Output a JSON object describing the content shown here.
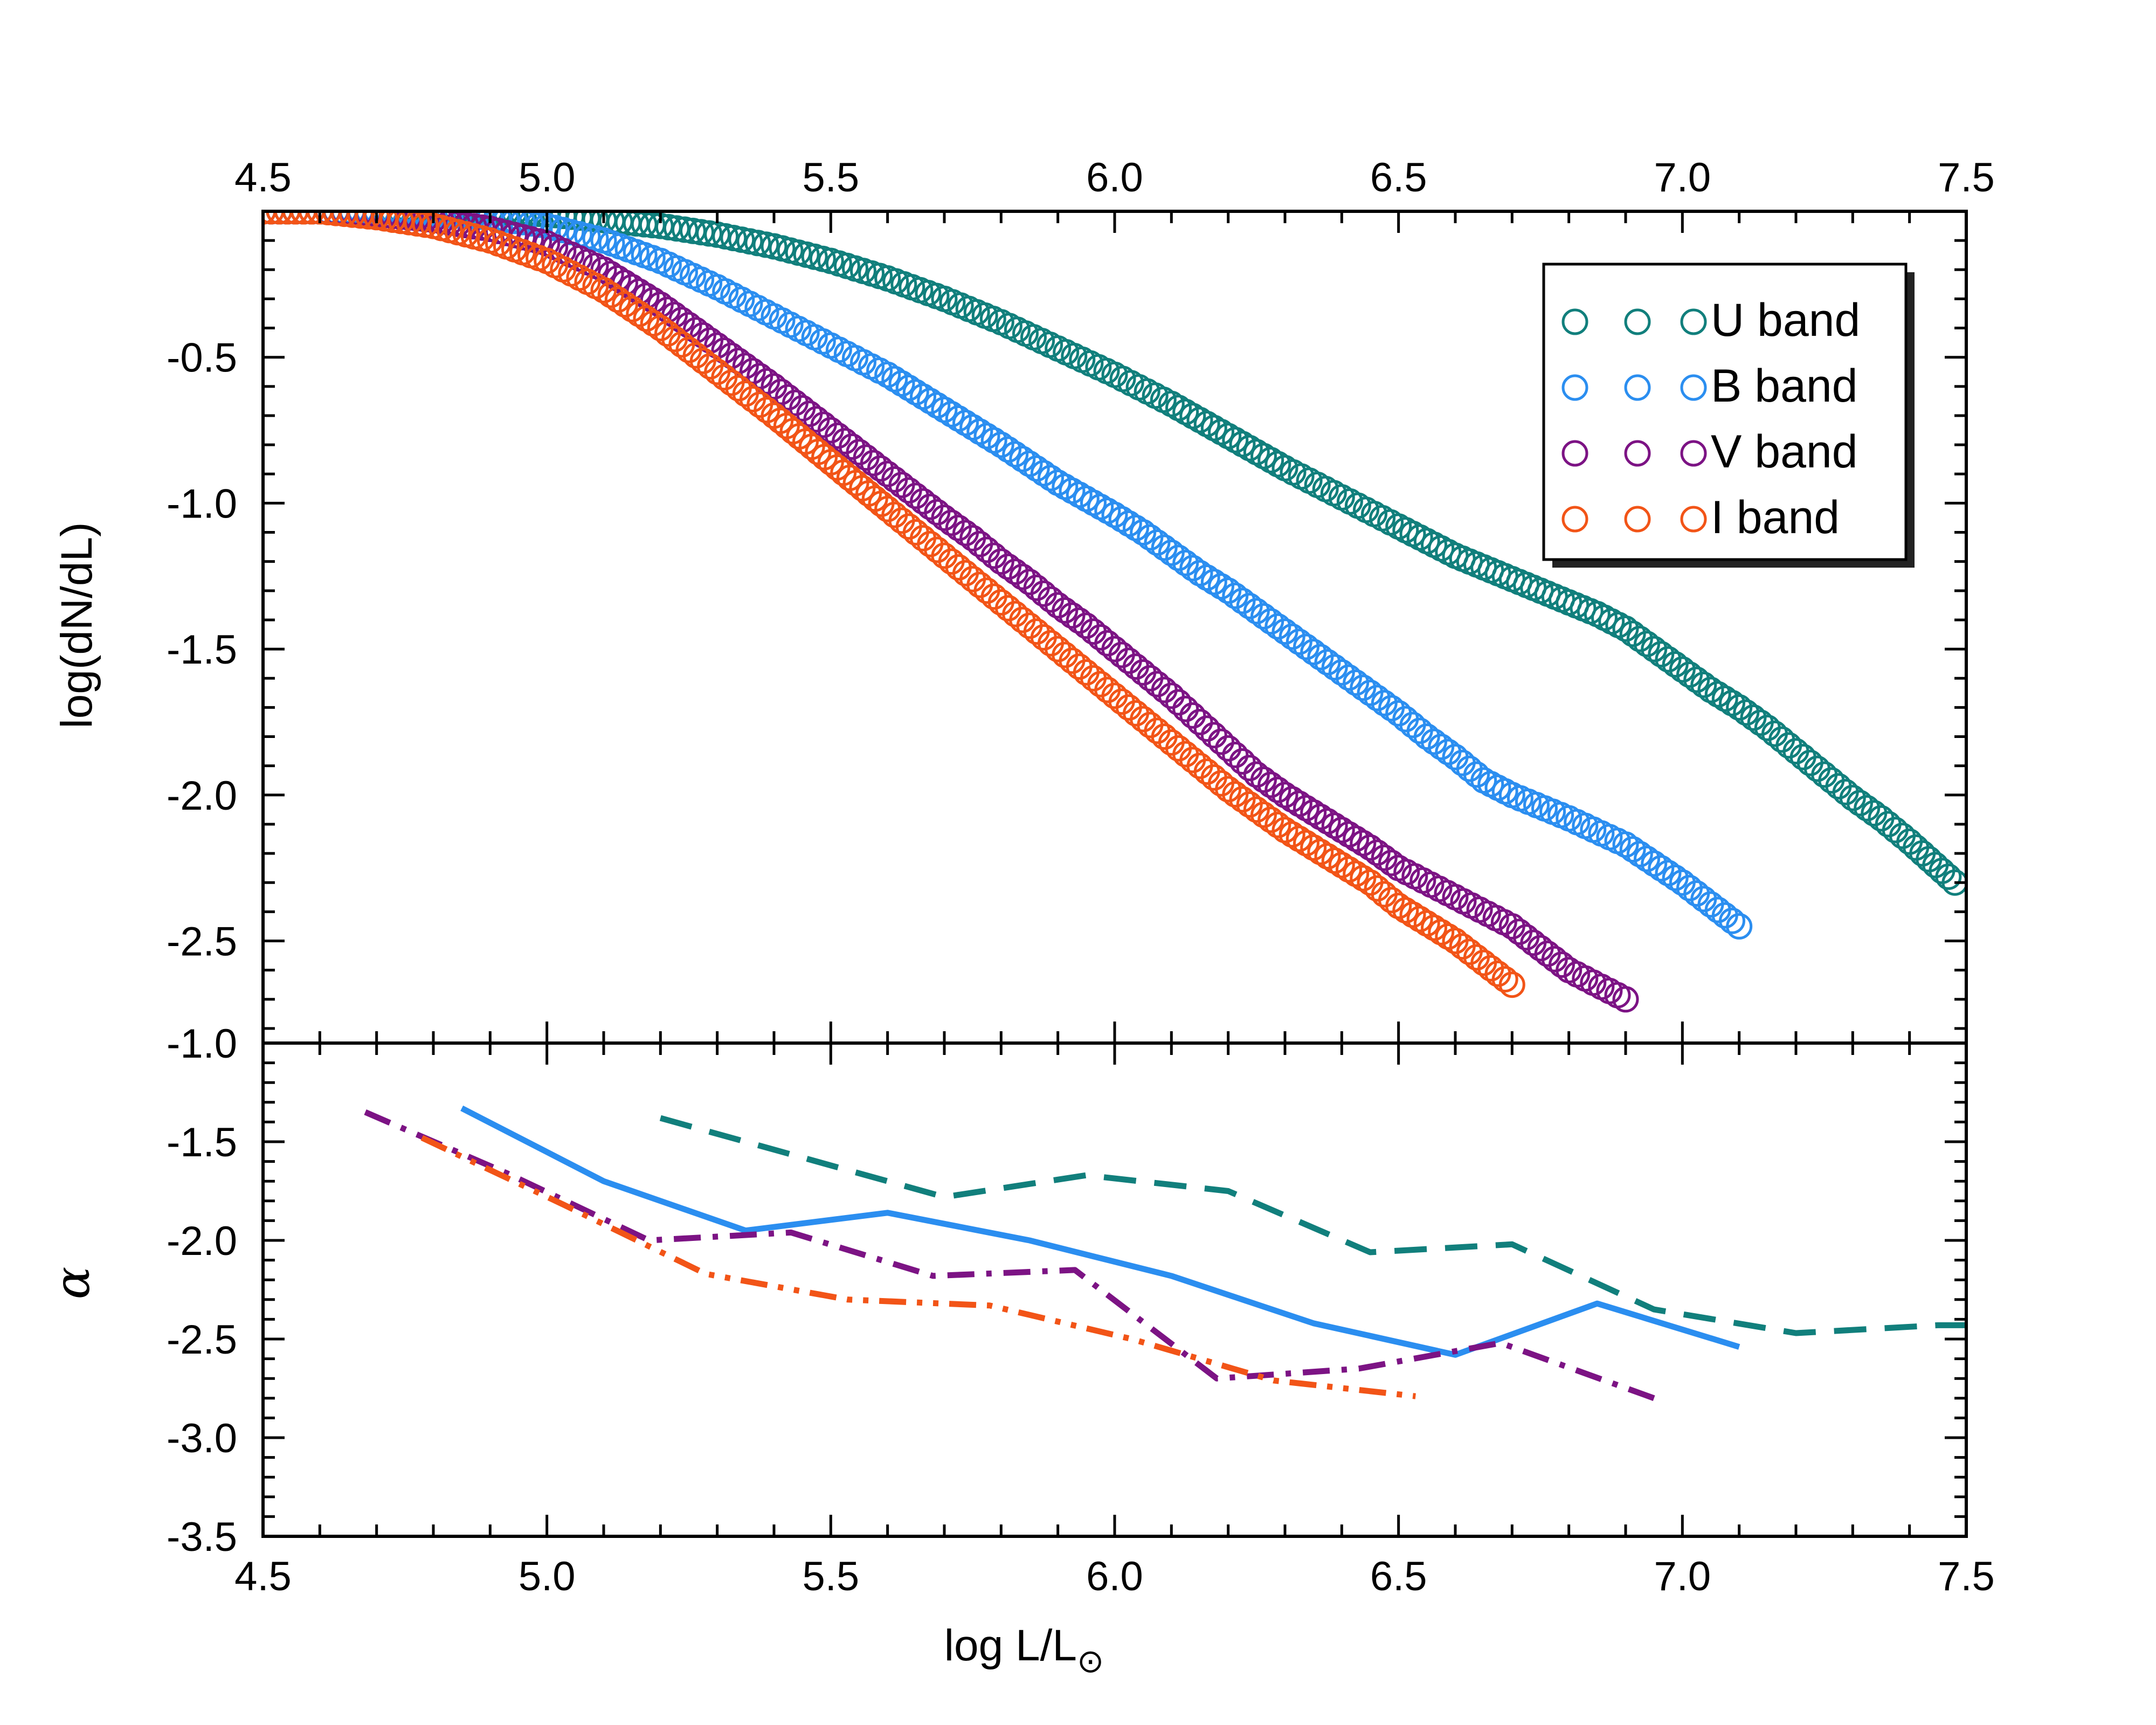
{
  "chart_data": [
    {
      "type": "scatter",
      "panel": "top",
      "xlim": [
        4.5,
        7.5
      ],
      "ylim": [
        -2.85,
        0.0
      ],
      "top_axis_ticks": [
        "4.5",
        "5.0",
        "5.5",
        "6.0",
        "6.5",
        "7.0",
        "7.5"
      ],
      "y_ticks": [
        "-0.5",
        "-1.0",
        "-1.5",
        "-2.0",
        "-2.5"
      ],
      "ylabel": "log(dN/dL)",
      "legend_position": "top-right",
      "series": [
        {
          "name": "U band",
          "color": "#117f7c",
          "legend_label": "U band",
          "x": [
            4.5,
            4.6,
            4.7,
            4.8,
            4.9,
            5.0,
            5.1,
            5.2,
            5.3,
            5.4,
            5.5,
            5.6,
            5.7,
            5.8,
            5.9,
            6.0,
            6.1,
            6.2,
            6.3,
            6.4,
            6.5,
            6.55,
            6.6,
            6.65,
            6.7,
            6.75,
            6.8,
            6.85,
            6.9,
            6.95,
            7.0,
            7.05,
            7.1,
            7.15,
            7.2,
            7.25,
            7.3,
            7.35,
            7.4,
            7.48
          ],
          "y": [
            0.0,
            0.0,
            0.0,
            0.0,
            0.0,
            -0.01,
            -0.03,
            -0.05,
            -0.08,
            -0.12,
            -0.17,
            -0.23,
            -0.3,
            -0.38,
            -0.47,
            -0.56,
            -0.66,
            -0.77,
            -0.88,
            -0.98,
            -1.08,
            -1.13,
            -1.18,
            -1.22,
            -1.26,
            -1.3,
            -1.34,
            -1.38,
            -1.43,
            -1.5,
            -1.57,
            -1.64,
            -1.7,
            -1.77,
            -1.85,
            -1.93,
            -2.01,
            -2.08,
            -2.16,
            -2.3
          ]
        },
        {
          "name": "B band",
          "color": "#2b8ef0",
          "legend_label": "B band",
          "x": [
            4.5,
            4.6,
            4.7,
            4.8,
            4.9,
            5.0,
            5.1,
            5.2,
            5.3,
            5.4,
            5.5,
            5.6,
            5.7,
            5.8,
            5.9,
            6.0,
            6.05,
            6.1,
            6.15,
            6.2,
            6.25,
            6.3,
            6.35,
            6.4,
            6.45,
            6.5,
            6.55,
            6.6,
            6.65,
            6.7,
            6.8,
            6.9,
            7.0,
            7.1
          ],
          "y": [
            0.0,
            0.0,
            0.0,
            -0.01,
            -0.02,
            -0.05,
            -0.1,
            -0.17,
            -0.26,
            -0.36,
            -0.46,
            -0.56,
            -0.68,
            -0.8,
            -0.93,
            -1.04,
            -1.1,
            -1.17,
            -1.24,
            -1.3,
            -1.37,
            -1.44,
            -1.51,
            -1.58,
            -1.65,
            -1.72,
            -1.8,
            -1.87,
            -1.95,
            -2.0,
            -2.08,
            -2.17,
            -2.3,
            -2.45
          ]
        },
        {
          "name": "V band",
          "color": "#7c1384",
          "legend_label": "V band",
          "x": [
            4.5,
            4.6,
            4.7,
            4.8,
            4.9,
            5.0,
            5.1,
            5.2,
            5.3,
            5.4,
            5.5,
            5.6,
            5.7,
            5.75,
            5.8,
            5.85,
            5.9,
            5.95,
            6.0,
            6.05,
            6.1,
            6.15,
            6.2,
            6.25,
            6.3,
            6.35,
            6.4,
            6.45,
            6.5,
            6.6,
            6.7,
            6.8,
            6.9
          ],
          "y": [
            0.0,
            0.0,
            -0.01,
            -0.03,
            -0.06,
            -0.11,
            -0.2,
            -0.32,
            -0.46,
            -0.6,
            -0.75,
            -0.9,
            -1.05,
            -1.12,
            -1.2,
            -1.27,
            -1.35,
            -1.42,
            -1.5,
            -1.58,
            -1.66,
            -1.75,
            -1.84,
            -1.93,
            -2.0,
            -2.06,
            -2.12,
            -2.18,
            -2.25,
            -2.35,
            -2.45,
            -2.6,
            -2.7
          ]
        },
        {
          "name": "I band",
          "color": "#f25417",
          "legend_label": "I band",
          "x": [
            4.5,
            4.6,
            4.7,
            4.8,
            4.9,
            5.0,
            5.1,
            5.2,
            5.3,
            5.4,
            5.5,
            5.6,
            5.65,
            5.7,
            5.75,
            5.8,
            5.85,
            5.9,
            5.95,
            6.0,
            6.05,
            6.1,
            6.15,
            6.2,
            6.25,
            6.3,
            6.35,
            6.4,
            6.45,
            6.5,
            6.6,
            6.7
          ],
          "y": [
            0.0,
            0.0,
            -0.02,
            -0.05,
            -0.1,
            -0.17,
            -0.27,
            -0.4,
            -0.55,
            -0.7,
            -0.86,
            -1.02,
            -1.1,
            -1.18,
            -1.26,
            -1.34,
            -1.42,
            -1.5,
            -1.58,
            -1.66,
            -1.74,
            -1.82,
            -1.9,
            -1.98,
            -2.05,
            -2.12,
            -2.18,
            -2.24,
            -2.3,
            -2.38,
            -2.5,
            -2.65
          ]
        }
      ]
    },
    {
      "type": "line",
      "panel": "bottom",
      "xlim": [
        4.5,
        7.5
      ],
      "ylim": [
        -3.5,
        -1.0
      ],
      "xlabel": "log L/L",
      "xlabel_subscript": "⊙",
      "ylabel": "α",
      "x_ticks": [
        "4.5",
        "5.0",
        "5.5",
        "6.0",
        "6.5",
        "7.0",
        "7.5"
      ],
      "y_ticks": [
        "-1.0",
        "-1.5",
        "-2.0",
        "-2.5",
        "-3.0",
        "-3.5"
      ],
      "series": [
        {
          "name": "U band",
          "color": "#117f7c",
          "style": "dashed",
          "x": [
            5.2,
            5.45,
            5.7,
            5.95,
            6.2,
            6.45,
            6.7,
            6.95,
            7.2,
            7.45,
            7.5
          ],
          "y": [
            -1.38,
            -1.58,
            -1.78,
            -1.67,
            -1.75,
            -2.06,
            -2.02,
            -2.35,
            -2.47,
            -2.43,
            -2.43
          ]
        },
        {
          "name": "B band",
          "color": "#2b8ef0",
          "style": "solid",
          "x": [
            4.85,
            5.1,
            5.35,
            5.6,
            5.85,
            6.1,
            6.35,
            6.6,
            6.85,
            7.1
          ],
          "y": [
            -1.33,
            -1.7,
            -1.95,
            -1.86,
            -2.0,
            -2.18,
            -2.42,
            -2.58,
            -2.32,
            -2.54
          ]
        },
        {
          "name": "V band",
          "color": "#7c1384",
          "style": "dashdot",
          "x": [
            4.68,
            4.93,
            5.18,
            5.43,
            5.68,
            5.93,
            6.18,
            6.43,
            6.68,
            6.95
          ],
          "y": [
            -1.35,
            -1.66,
            -2.0,
            -1.96,
            -2.18,
            -2.15,
            -2.7,
            -2.65,
            -2.52,
            -2.8
          ]
        },
        {
          "name": "I band",
          "color": "#f25417",
          "style": "dashdotdot",
          "x": [
            4.78,
            5.03,
            5.28,
            5.53,
            5.78,
            6.03,
            6.28,
            6.53
          ],
          "y": [
            -1.48,
            -1.82,
            -2.17,
            -2.3,
            -2.33,
            -2.5,
            -2.71,
            -2.79
          ]
        }
      ]
    }
  ]
}
